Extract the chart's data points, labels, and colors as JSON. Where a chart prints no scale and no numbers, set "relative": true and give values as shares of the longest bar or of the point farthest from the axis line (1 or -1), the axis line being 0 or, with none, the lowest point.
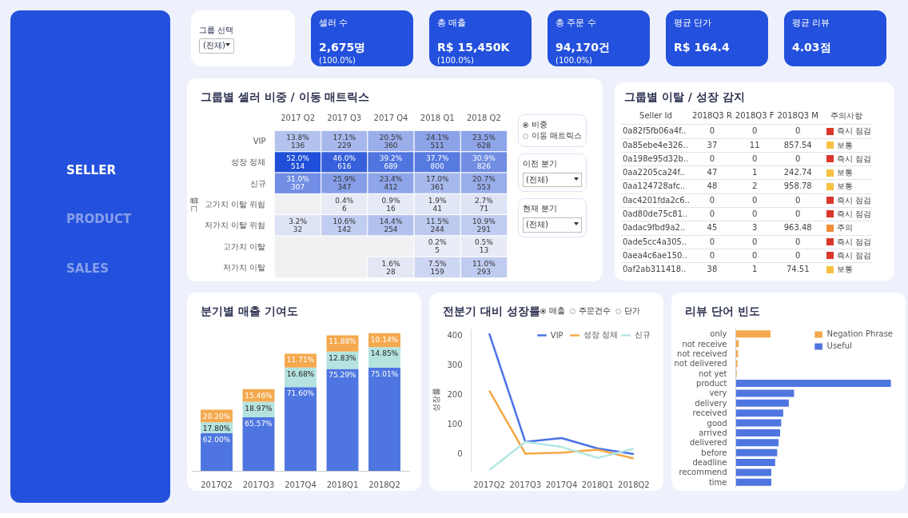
{
  "chart_data": [
    {
      "type": "other",
      "annotations": [
        "SELLER",
        "PRODUCT",
        "SALES"
      ]
    },
    {
      "type": "other",
      "title": "그룹 선택",
      "annotations": [
        "(전체)"
      ]
    },
    {
      "type": "other",
      "categories": [
        "셀러 수",
        "총 매출",
        "총 주문 수",
        "평균 단가",
        "평균 리뷰"
      ],
      "value_labels": [
        "2,675명",
        "R$ 15,450K",
        "94,170건",
        "R$ 164.4",
        "4.03점"
      ],
      "color": "#2350dc",
      "annotations": [
        {
          "text": "(100.0%)",
          "x": "셀러 수"
        },
        {
          "text": "(100.0%)",
          "x": "총 매출"
        },
        {
          "text": "(100.0%)",
          "x": "총 주문 수"
        }
      ]
    },
    {
      "type": "heatmap",
      "title": "그룹별 셀러 비중 / 이동 매트릭스",
      "ylabel": "그룹",
      "categories": [
        "2017 Q2",
        "2017 Q3",
        "2017 Q4",
        "2018 Q1",
        "2018 Q2"
      ],
      "y_categories": [
        "VIP",
        "성장 정체",
        "신규",
        "고가치 이탈 위험",
        "저가치 이탈 위험",
        "고가치 이탈",
        "저가치 이탈"
      ],
      "cells": [
        [
          13.8,
          17.1,
          20.5,
          24.1,
          23.5
        ],
        [
          52.0,
          46.0,
          39.2,
          37.7,
          30.9
        ],
        [
          31.0,
          25.9,
          23.4,
          17.0,
          20.7
        ],
        [
          null,
          0.4,
          0.9,
          1.9,
          2.7
        ],
        [
          3.2,
          10.6,
          14.4,
          11.5,
          10.9
        ],
        [
          null,
          null,
          null,
          0.2,
          0.5
        ],
        [
          null,
          null,
          1.6,
          7.5,
          11.0
        ]
      ],
      "cell_labels": [
        [
          "13.8%",
          "17.1%",
          "20.5%",
          "24.1%",
          "23.5%"
        ],
        [
          "52.0%",
          "46.0%",
          "39.2%",
          "37.7%",
          "30.9%"
        ],
        [
          "31.0%",
          "25.9%",
          "23.4%",
          "17.0%",
          "20.7%"
        ],
        [
          null,
          "0.4%",
          "0.9%",
          "1.9%",
          "2.7%"
        ],
        [
          "3.2%",
          "10.6%",
          "14.4%",
          "11.5%",
          "10.9%"
        ],
        [
          null,
          null,
          null,
          "0.2%",
          "0.5%"
        ],
        [
          null,
          null,
          "1.6%",
          "7.5%",
          "11.0%"
        ]
      ],
      "annotations": [
        "비중",
        "이동 매트릭스",
        "이전 분기",
        "(전체)",
        "현재 분기",
        "(전체)",
        "136",
        "229",
        "360",
        "511",
        "628",
        "514",
        "616",
        "689",
        "800",
        "826",
        "307",
        "347",
        "412",
        "361",
        "553",
        "6",
        "16",
        "41",
        "71",
        "32",
        "142",
        "254",
        "244",
        "291",
        "5",
        "13",
        "28",
        "159",
        "293"
      ]
    },
    {
      "type": "other",
      "title": "그룹별 이탈 / 성장 감지",
      "y_categories": [
        "Seller Id",
        "0a82f5fb06a4f..",
        "0a85ebe4e326..",
        "0a198e95d32b..",
        "0aa2205ca24f..",
        "0aa124728afc..",
        "0ac4201fda2c6..",
        "0ad80de75c81..",
        "0adac9fbd9a2..",
        "0ade5cc4a305..",
        "0aea4c6ae150..",
        "0af2ab311418.."
      ],
      "cell_labels": [
        [
          "2018Q3 R",
          "2018Q3 F",
          "2018Q3 M",
          "주의사항"
        ],
        [
          "0",
          "0",
          "0",
          "즉시 점검"
        ],
        [
          "37",
          "11",
          "857.54",
          "보통"
        ],
        [
          "0",
          "0",
          "0",
          "즉시 점검"
        ],
        [
          "47",
          "1",
          "242.74",
          "보통"
        ],
        [
          "48",
          "2",
          "958.78",
          "보통"
        ],
        [
          "0",
          "0",
          "0",
          "즉시 점검"
        ],
        [
          "0",
          "0",
          "0",
          "즉시 점검"
        ],
        [
          "45",
          "3",
          "963.48",
          "주의"
        ],
        [
          "0",
          "0",
          "0",
          "즉시 점검"
        ],
        [
          "0",
          "0",
          "0",
          "즉시 점검"
        ],
        [
          "38",
          "1",
          "74.51",
          "보통"
        ]
      ],
      "colors": [
        null,
        "#d9372b",
        "#f5c242",
        "#d9372b",
        "#f5c242",
        "#f5c242",
        "#d9372b",
        "#d9372b",
        "#f28c38",
        "#d9372b",
        "#d9372b",
        "#f5c242"
      ]
    },
    {
      "type": "bar",
      "title": "분기별 매출 기여도",
      "stacked": true,
      "relative": true,
      "categories": [
        "2017Q2",
        "2017Q3",
        "2017Q4",
        "2018Q1",
        "2018Q2"
      ],
      "series": [
        {
          "color": "#4f76e0",
          "values": [
            0.276,
            0.39,
            0.609,
            0.741,
            0.75
          ]
        },
        {
          "color": "#b5e3e0",
          "values": [
            0.079,
            0.113,
            0.142,
            0.126,
            0.149
          ]
        },
        {
          "color": "#f4a94e",
          "values": [
            0.09,
            0.092,
            0.1,
            0.117,
            0.101
          ]
        }
      ],
      "annotations": [
        {
          "text": "62.00%",
          "x": "2017Q2",
          "y": 0.276
        },
        {
          "text": "65.57%",
          "x": "2017Q3",
          "y": 0.39
        },
        {
          "text": "71.60%",
          "x": "2017Q4",
          "y": 0.609
        },
        {
          "text": "75.29%",
          "x": "2018Q1",
          "y": 0.741
        },
        {
          "text": "75.01%",
          "x": "2018Q2",
          "y": 0.75
        },
        {
          "text": "17.80%",
          "x": "2017Q2",
          "y": 0.355
        },
        {
          "text": "18.97%",
          "x": "2017Q3",
          "y": 0.503
        },
        {
          "text": "16.68%",
          "x": "2017Q4",
          "y": 0.751
        },
        {
          "text": "12.83%",
          "x": "2018Q1",
          "y": 0.867
        },
        {
          "text": "14.85%",
          "x": "2018Q2",
          "y": 0.899
        },
        {
          "text": "20.20%",
          "x": "2017Q2",
          "y": 0.445
        },
        {
          "text": "15.46%",
          "x": "2017Q3",
          "y": 0.595
        },
        {
          "text": "11.71%",
          "x": "2017Q4",
          "y": 0.851
        },
        {
          "text": "11.88%",
          "x": "2018Q1",
          "y": 0.984
        },
        {
          "text": "10.14%",
          "x": "2018Q2",
          "y": 1.0
        }
      ]
    },
    {
      "type": "line",
      "title": "전분기 대비 성장률",
      "ylabel": "성장률",
      "categories": [
        "2017Q2",
        "2017Q3",
        "2017Q4",
        "2018Q1",
        "2018Q2"
      ],
      "ylim": [
        -60,
        420
      ],
      "yticks": [
        0,
        100,
        200,
        300,
        400
      ],
      "legend": "top right",
      "line_style": "solid",
      "annotations": [
        "매출",
        "주문건수",
        "단가"
      ],
      "series": [
        {
          "name": "VIP",
          "color": "#4a72e8",
          "values": [
            405,
            39,
            52,
            17,
            -2
          ]
        },
        {
          "name": "성장 정체",
          "color": "#f5a845",
          "values": [
            212,
            -1,
            3,
            13,
            -17
          ]
        },
        {
          "name": "신규",
          "color": "#b3e6e3",
          "values": [
            -56,
            39,
            22,
            -15,
            16
          ]
        }
      ]
    },
    {
      "type": "bar",
      "title": "리뷰 단어 빈도",
      "orientation": "horizontal",
      "stacked": true,
      "relative": true,
      "legend": "top right",
      "categories": [
        "only",
        "not receive",
        "not received",
        "not delivered",
        "not yet",
        "product",
        "very",
        "delivery",
        "received",
        "good",
        "arrived",
        "delivered",
        "before",
        "deadline",
        "recommend",
        "time"
      ],
      "series": [
        {
          "name": "Negation Phrase",
          "color": "#f4a94e",
          "values": [
            0.224,
            0.019,
            0.015,
            0.011,
            0.006,
            null,
            null,
            null,
            null,
            null,
            null,
            null,
            null,
            null,
            null,
            null
          ]
        },
        {
          "name": "Useful",
          "color": "#4f76e0",
          "values": [
            null,
            null,
            null,
            null,
            null,
            1,
            0.376,
            0.342,
            0.306,
            0.293,
            0.286,
            0.276,
            0.267,
            0.254,
            0.229,
            0.229
          ]
        }
      ]
    }
  ]
}
